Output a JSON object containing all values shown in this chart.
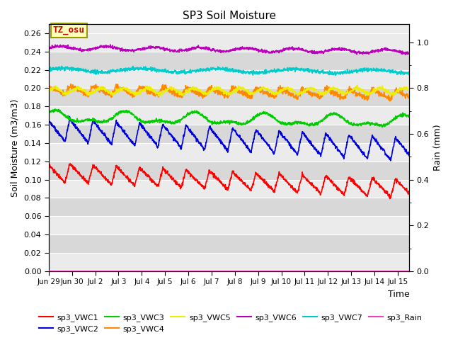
{
  "title": "SP3 Soil Moisture",
  "xlabel": "Time",
  "ylabel_left": "Soil Moisture (m3/m3)",
  "ylabel_right": "Rain (mm)",
  "ylim_left": [
    0.0,
    0.27
  ],
  "ylim_right": [
    0.0,
    1.08
  ],
  "yticks_left": [
    0.0,
    0.02,
    0.04,
    0.06,
    0.08,
    0.1,
    0.12,
    0.14,
    0.16,
    0.18,
    0.2,
    0.22,
    0.24,
    0.26
  ],
  "yticks_right_major": [
    0.0,
    0.2,
    0.4,
    0.6,
    0.8,
    1.0
  ],
  "bg_color_light": "#ebebeb",
  "bg_color_dark": "#d8d8d8",
  "colors": {
    "sp3_VWC1": "#ff0000",
    "sp3_VWC2": "#0000dd",
    "sp3_VWC3": "#00cc00",
    "sp3_VWC4": "#ff8800",
    "sp3_VWC5": "#eeee00",
    "sp3_VWC6": "#bb00bb",
    "sp3_VWC7": "#00cccc",
    "sp3_Rain": "#ee44bb"
  },
  "tz_box_color": "#ffffbb",
  "tz_box_edge": "#999900",
  "tz_text": "TZ_osu",
  "tz_text_color": "#cc0000",
  "n_days": 15.5,
  "lw": 1.2
}
